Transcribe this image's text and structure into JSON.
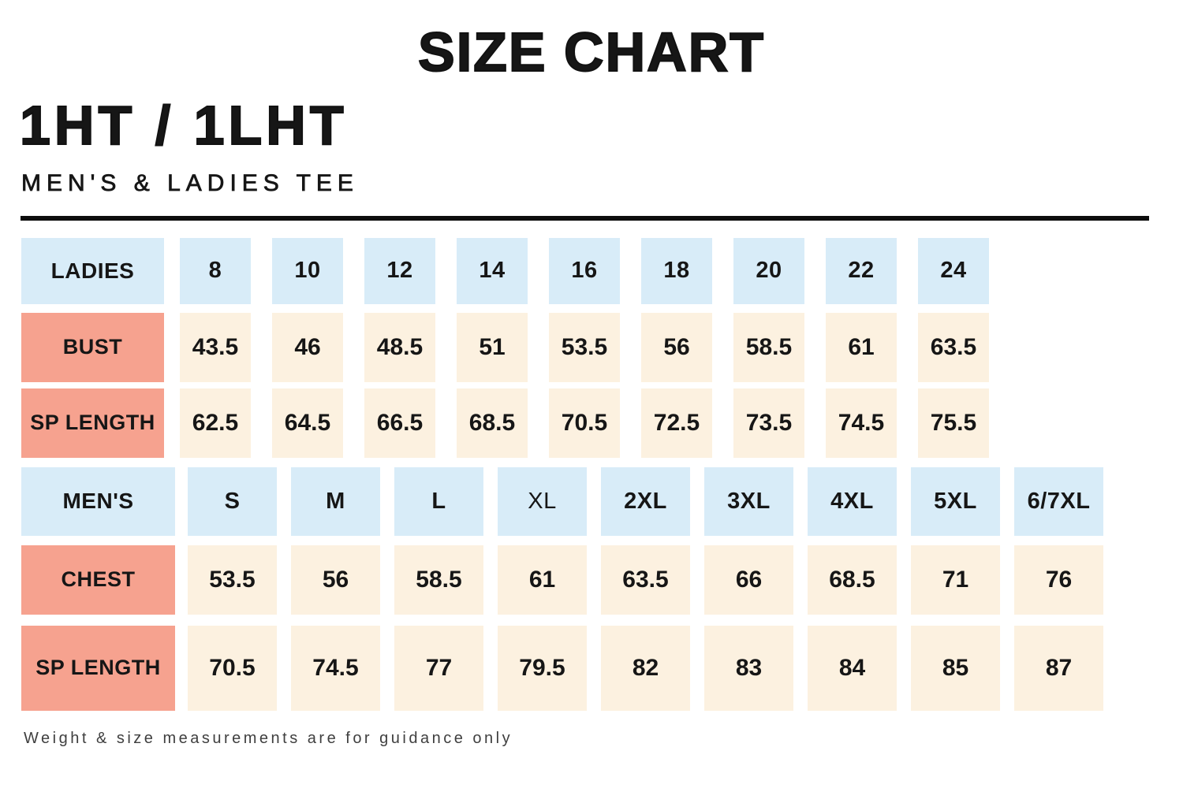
{
  "header": {
    "title": "SIZE CHART",
    "product_code": "1HT / 1LHT",
    "subtitle": "MEN'S & LADIES TEE"
  },
  "colors": {
    "size_header_bg": "#d8ecf8",
    "row_header_bg": "#f6a28f",
    "cell_bg": "#fcf1e0",
    "divider": "#0d0d0d",
    "text": "#161616"
  },
  "tables": {
    "ladies": {
      "label": "LADIES",
      "sizes": [
        "8",
        "10",
        "12",
        "14",
        "16",
        "18",
        "20",
        "22",
        "24"
      ],
      "rows": [
        {
          "label": "BUST",
          "values": [
            "43.5",
            "46",
            "48.5",
            "51",
            "53.5",
            "56",
            "58.5",
            "61",
            "63.5"
          ]
        },
        {
          "label": "SP LENGTH",
          "values": [
            "62.5",
            "64.5",
            "66.5",
            "68.5",
            "70.5",
            "72.5",
            "73.5",
            "74.5",
            "75.5"
          ]
        }
      ]
    },
    "mens": {
      "label": "MEN'S",
      "sizes": [
        "S",
        "M",
        "L",
        "XL",
        "2XL",
        "3XL",
        "4XL",
        "5XL",
        "6/7XL"
      ],
      "rows": [
        {
          "label": "CHEST",
          "values": [
            "53.5",
            "56",
            "58.5",
            "61",
            "63.5",
            "66",
            "68.5",
            "71",
            "76"
          ]
        },
        {
          "label": "SP LENGTH",
          "values": [
            "70.5",
            "74.5",
            "77",
            "79.5",
            "82",
            "83",
            "84",
            "85",
            "87"
          ]
        }
      ]
    }
  },
  "footer": {
    "note": "Weight & size measurements are for guidance only"
  }
}
